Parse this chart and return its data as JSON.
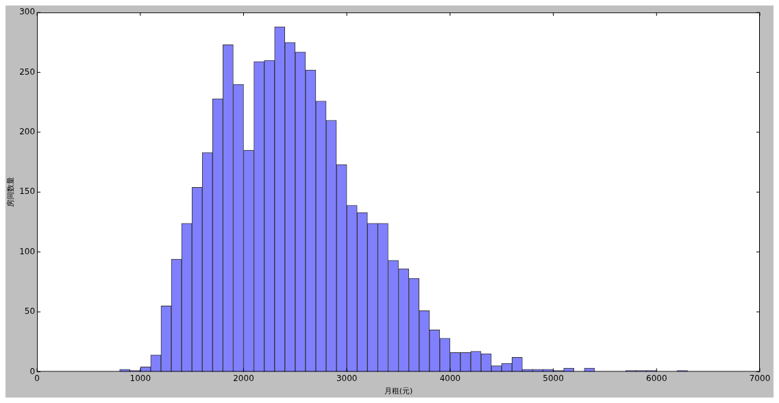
{
  "chart_data": {
    "type": "histogram",
    "xlabel": "月租(元)",
    "ylabel": "房间数量",
    "bins": [
      800,
      900,
      1000,
      1100,
      1200,
      1300,
      1400,
      1500,
      1600,
      1700,
      1800,
      1900,
      2000,
      2100,
      2200,
      2300,
      2400,
      2500,
      2600,
      2700,
      2800,
      2900,
      3000,
      3100,
      3200,
      3300,
      3400,
      3500,
      3600,
      3700,
      3800,
      3900,
      4000,
      4100,
      4200,
      4300,
      4400,
      4500,
      4600,
      4700,
      4800,
      4900,
      5000,
      5100,
      5200,
      5300,
      5400,
      5500,
      5600,
      5700,
      5800,
      5900,
      6000,
      6100,
      6200,
      6300
    ],
    "values": [
      2,
      1,
      4,
      14,
      55,
      94,
      124,
      154,
      183,
      228,
      273,
      240,
      185,
      259,
      260,
      288,
      275,
      267,
      252,
      226,
      210,
      173,
      139,
      133,
      124,
      124,
      93,
      86,
      78,
      51,
      35,
      28,
      16,
      16,
      17,
      15,
      5,
      7,
      12,
      2,
      2,
      2,
      1,
      3,
      0,
      3,
      0,
      0,
      0,
      1,
      1,
      1,
      0,
      0,
      1
    ],
    "color": "#8080ff",
    "xlim": [
      0,
      7000
    ],
    "xticks": [
      0,
      1000,
      2000,
      3000,
      4000,
      5000,
      6000,
      7000
    ],
    "ylim": [
      0,
      300
    ],
    "yticks": [
      0,
      50,
      100,
      150,
      200,
      250,
      300
    ],
    "grid": false
  }
}
